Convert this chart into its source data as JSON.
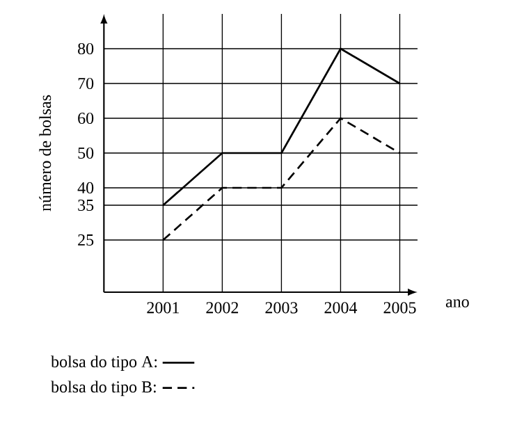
{
  "chart_data": {
    "type": "line",
    "xlabel": "ano",
    "ylabel": "número de bolsas",
    "x": [
      2001,
      2002,
      2003,
      2004,
      2005
    ],
    "series": [
      {
        "name": "bolsa do tipo A:",
        "color": "#000000",
        "values": [
          35,
          50,
          50,
          80,
          70
        ],
        "line_style": "solid"
      },
      {
        "name": "bolsa do tipo B:",
        "color": "#000000",
        "values": [
          25,
          40,
          40,
          60,
          50
        ],
        "line_style": "dashed"
      }
    ],
    "xlim": [
      2000,
      2005.3
    ],
    "ylim": [
      10,
      90
    ],
    "xticks": [
      2001,
      2002,
      2003,
      2004,
      2005
    ],
    "yticks": [
      25,
      35,
      40,
      50,
      60,
      70,
      80
    ],
    "grid": true,
    "legend": "bottom",
    "marker": "none"
  }
}
